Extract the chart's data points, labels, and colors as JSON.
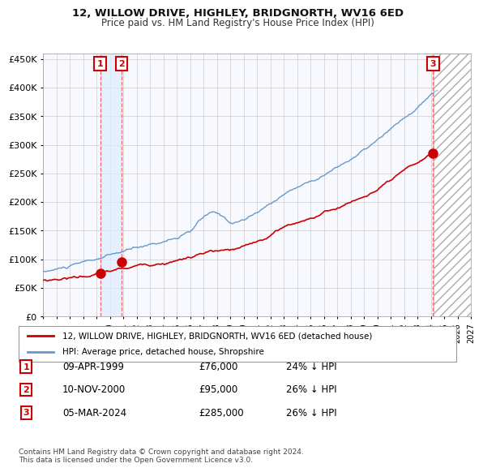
{
  "title1": "12, WILLOW DRIVE, HIGHLEY, BRIDGNORTH, WV16 6ED",
  "title2": "Price paid vs. HM Land Registry's House Price Index (HPI)",
  "xlim": [
    1995.0,
    2027.0
  ],
  "ylim": [
    0,
    460000
  ],
  "yticks": [
    0,
    50000,
    100000,
    150000,
    200000,
    250000,
    300000,
    350000,
    400000,
    450000
  ],
  "ytick_labels": [
    "£0",
    "£50K",
    "£100K",
    "£150K",
    "£200K",
    "£250K",
    "£300K",
    "£350K",
    "£400K",
    "£450K"
  ],
  "xtick_years": [
    1995,
    1996,
    1997,
    1998,
    1999,
    2000,
    2001,
    2002,
    2003,
    2004,
    2005,
    2006,
    2007,
    2008,
    2009,
    2010,
    2011,
    2012,
    2013,
    2014,
    2015,
    2016,
    2017,
    2018,
    2019,
    2020,
    2021,
    2022,
    2023,
    2024,
    2025,
    2026,
    2027
  ],
  "red_line_color": "#cc0000",
  "blue_line_color": "#6699cc",
  "marker_color": "#cc0000",
  "sale1_x": 1999.27,
  "sale1_y": 76000,
  "sale2_x": 2000.86,
  "sale2_y": 95000,
  "sale3_x": 2024.17,
  "sale3_y": 285000,
  "legend_label_red": "12, WILLOW DRIVE, HIGHLEY, BRIDGNORTH, WV16 6ED (detached house)",
  "legend_label_blue": "HPI: Average price, detached house, Shropshire",
  "table_data": [
    [
      "1",
      "09-APR-1999",
      "£76,000",
      "24% ↓ HPI"
    ],
    [
      "2",
      "10-NOV-2000",
      "£95,000",
      "26% ↓ HPI"
    ],
    [
      "3",
      "05-MAR-2024",
      "£285,000",
      "26% ↓ HPI"
    ]
  ],
  "footer": "Contains HM Land Registry data © Crown copyright and database right 2024.\nThis data is licensed under the Open Government Licence v3.0.",
  "bg_color": "#ffffff",
  "plot_bg_color": "#f8f8ff",
  "grid_color": "#cccccc",
  "hatch_color": "#cccccc",
  "shade_x1": 1999.27,
  "shade_x2": 2000.86
}
